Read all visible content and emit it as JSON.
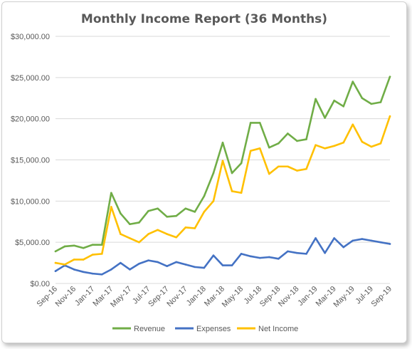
{
  "chart_data": {
    "type": "line",
    "title": "Monthly Income Report (36 Months)",
    "xlabel": "",
    "ylabel": "",
    "ylim": [
      0,
      30000
    ],
    "y_ticks": [
      0,
      5000,
      10000,
      15000,
      20000,
      25000,
      30000
    ],
    "y_tick_labels": [
      "$0.00",
      "$5,000.00",
      "$10,000.00",
      "$15,000.00",
      "$20,000.00",
      "$25,000.00",
      "$30,000.00"
    ],
    "categories": [
      "Sep-16",
      "Oct-16",
      "Nov-16",
      "Dec-16",
      "Jan-17",
      "Feb-17",
      "Mar-17",
      "Apr-17",
      "May-17",
      "Jun-17",
      "Jul-17",
      "Aug-17",
      "Sep-17",
      "Oct-17",
      "Nov-17",
      "Dec-17",
      "Jan-18",
      "Feb-18",
      "Mar-18",
      "Apr-18",
      "May-18",
      "Jun-18",
      "Jul-18",
      "Aug-18",
      "Sep-18",
      "Oct-18",
      "Nov-18",
      "Dec-18",
      "Jan-19",
      "Feb-19",
      "Mar-19",
      "Apr-19",
      "May-19",
      "Jun-19",
      "Jul-19",
      "Aug-19",
      "Sep-19"
    ],
    "x_tick_labels": [
      "Sep-16",
      "Nov-16",
      "Jan-17",
      "Mar-17",
      "May-17",
      "Jul-17",
      "Sep-17",
      "Nov-17",
      "Jan-18",
      "Mar-18",
      "May-18",
      "Jul-18",
      "Sep-18",
      "Nov-18",
      "Jan-19",
      "Mar-19",
      "May-19",
      "Jul-19",
      "Sep-19"
    ],
    "grid": true,
    "legend_position": "bottom",
    "series": [
      {
        "name": "Revenue",
        "color": "#70ad47",
        "values": [
          3900,
          4500,
          4600,
          4300,
          4700,
          4700,
          11000,
          8500,
          7200,
          7400,
          8800,
          9100,
          8100,
          8200,
          9100,
          8700,
          10600,
          13400,
          17100,
          13400,
          14600,
          19500,
          19500,
          16500,
          17000,
          18200,
          17300,
          17500,
          22400,
          20100,
          22200,
          21500,
          24500,
          22500,
          21800,
          22000,
          25100
        ]
      },
      {
        "name": "Expenses",
        "color": "#4472c4",
        "values": [
          1500,
          2200,
          1700,
          1400,
          1200,
          1100,
          1700,
          2500,
          1700,
          2400,
          2800,
          2600,
          2100,
          2600,
          2300,
          2000,
          1900,
          3400,
          2200,
          2200,
          3600,
          3300,
          3100,
          3200,
          3000,
          3900,
          3700,
          3600,
          5500,
          3700,
          5500,
          4400,
          5200,
          5400,
          5200,
          5000,
          4800
        ]
      },
      {
        "name": "Net Income",
        "color": "#ffc000",
        "values": [
          2500,
          2300,
          2900,
          2900,
          3500,
          3600,
          9300,
          6000,
          5500,
          5000,
          6000,
          6500,
          6000,
          5600,
          6800,
          6700,
          8700,
          10000,
          14900,
          11200,
          11000,
          16100,
          16400,
          13300,
          14200,
          14200,
          13700,
          13900,
          16800,
          16400,
          16700,
          17100,
          19300,
          17200,
          16600,
          17000,
          20300
        ]
      }
    ]
  }
}
